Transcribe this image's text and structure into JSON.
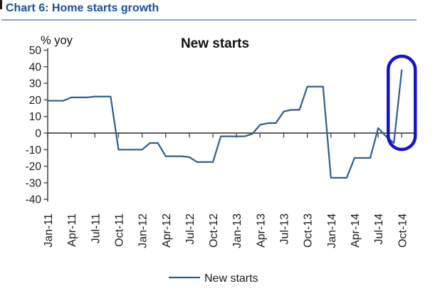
{
  "header": {
    "title": "Chart 6: Home starts growth"
  },
  "colors": {
    "header_blue": "#1b4f9e",
    "header_rule": "#8ba3c4",
    "line": "#2e5e8e",
    "axis": "#4a4a4a",
    "text": "#1a1a1a",
    "annotation": "#1414cf"
  },
  "chart_data": {
    "type": "line",
    "title": "New starts",
    "unit_label": "% yoy",
    "ylim": [
      -40,
      50
    ],
    "ytick_step": 10,
    "x_tick_every": 3,
    "grid": "off",
    "legend_position": "bottom",
    "x": [
      "Jan-11",
      "Feb-11",
      "Mar-11",
      "Apr-11",
      "May-11",
      "Jun-11",
      "Jul-11",
      "Aug-11",
      "Sep-11",
      "Oct-11",
      "Nov-11",
      "Dec-11",
      "Jan-12",
      "Feb-12",
      "Mar-12",
      "Apr-12",
      "May-12",
      "Jun-12",
      "Jul-12",
      "Aug-12",
      "Sep-12",
      "Oct-12",
      "Nov-12",
      "Dec-12",
      "Jan-13",
      "Feb-13",
      "Mar-13",
      "Apr-13",
      "May-13",
      "Jun-13",
      "Jul-13",
      "Aug-13",
      "Sep-13",
      "Oct-13",
      "Nov-13",
      "Dec-13",
      "Jan-14",
      "Feb-14",
      "Mar-14",
      "Apr-14",
      "May-14",
      "Jun-14",
      "Jul-14",
      "Aug-14",
      "Sep-14",
      "Oct-14"
    ],
    "series": [
      {
        "name": "New starts",
        "values": [
          19.5,
          19.5,
          19.5,
          21.5,
          21.5,
          21.5,
          22,
          22,
          22,
          -10,
          -10,
          -10,
          -10,
          -6,
          -6,
          -14,
          -14,
          -14,
          -14.5,
          -17.5,
          -17.5,
          -17.5,
          -2,
          -2,
          -2,
          -2,
          -0.5,
          5,
          6,
          6,
          13,
          14,
          14,
          28,
          28,
          28,
          -27,
          -27,
          -27,
          -15,
          -15,
          -15,
          3,
          -2,
          -6,
          38
        ]
      }
    ],
    "legend": [
      {
        "label": "New starts"
      }
    ],
    "annotation": {
      "shape": "ellipse",
      "x_index": 45,
      "purpose": "highlights Oct-14 spike"
    }
  }
}
